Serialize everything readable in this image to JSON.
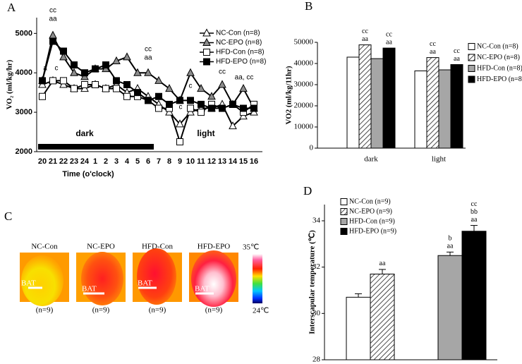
{
  "chart_data": [
    {
      "type": "line",
      "panel": "A",
      "x_label": "Time (o'clock)",
      "y_label": "VO₂ (ml/kg/hr)",
      "categories": [
        "20",
        "21",
        "22",
        "23",
        "24",
        "1",
        "2",
        "3",
        "4",
        "5",
        "6",
        "7",
        "8",
        "9",
        "10",
        "11",
        "12",
        "13",
        "14",
        "15",
        "16"
      ],
      "ylim": [
        2000,
        5400
      ],
      "yticks": [
        2000,
        3000,
        4000,
        5000
      ],
      "period_labels": [
        "dark",
        "light"
      ],
      "series": [
        {
          "name": "NC-Con (n=8)",
          "marker": "triangle",
          "color": "#ffffff",
          "values": [
            3700,
            3800,
            3700,
            3600,
            3600,
            3700,
            3600,
            3700,
            3500,
            3600,
            3400,
            3200,
            3000,
            2700,
            3000,
            3100,
            3100,
            3200,
            2650,
            2900,
            3000
          ]
        },
        {
          "name": "NC-EPO (n=8)",
          "marker": "triangle",
          "color": "#8c8c8c",
          "values": [
            3800,
            4950,
            4400,
            4000,
            3900,
            4100,
            4100,
            4300,
            4400,
            4000,
            4000,
            3800,
            3600,
            3300,
            4000,
            3600,
            3400,
            3700,
            3200,
            3600,
            3100
          ]
        },
        {
          "name": "HFD-Con (n=8)",
          "marker": "square",
          "color": "#ffffff",
          "values": [
            3400,
            3800,
            3800,
            3600,
            3700,
            3700,
            3600,
            3600,
            3400,
            3400,
            3300,
            3100,
            3100,
            2250,
            3100,
            3000,
            3200,
            3100,
            3200,
            3000,
            3200
          ]
        },
        {
          "name": "HFD-EPO (n=8)",
          "marker": "square",
          "color": "#000000",
          "values": [
            3800,
            4800,
            4550,
            4200,
            4000,
            4100,
            4200,
            3800,
            3700,
            3500,
            3300,
            3400,
            3200,
            3300,
            3300,
            3200,
            3100,
            3100,
            3200,
            3100,
            3100
          ]
        }
      ],
      "annotations": [
        {
          "lines": [
            "cc",
            "aa"
          ]
        },
        {
          "lines": [
            "a"
          ]
        },
        {
          "lines": [
            "c"
          ]
        },
        {
          "lines": [
            "cc",
            "aa"
          ]
        },
        {
          "lines": [
            "c"
          ]
        },
        {
          "lines": [
            "c"
          ]
        },
        {
          "lines": [
            "cc"
          ]
        },
        {
          "lines": [
            "aa, cc"
          ]
        }
      ]
    },
    {
      "type": "bar",
      "panel": "B",
      "y_label": "VO2 (ml/kg/11hr)",
      "categories": [
        "dark",
        "light"
      ],
      "ylim": [
        0,
        50000
      ],
      "yticks": [
        0,
        10000,
        20000,
        30000,
        40000,
        50000
      ],
      "series": [
        {
          "name": "NC-Con (n=8)",
          "color": "#ffffff",
          "pattern": "none",
          "values": [
            43000,
            36500
          ]
        },
        {
          "name": "NC-EPO (n=8)",
          "color": "#ffffff",
          "pattern": "hatch",
          "values": [
            48800,
            42800
          ]
        },
        {
          "name": "HFD-Con (n=8)",
          "color": "#a6a6a6",
          "pattern": "none",
          "values": [
            42300,
            37000
          ]
        },
        {
          "name": "HFD-EPO (n=8)",
          "color": "#000000",
          "pattern": "none",
          "values": [
            47300,
            39500
          ]
        }
      ],
      "annotations": [
        {
          "lines": [
            "cc",
            "aa"
          ]
        },
        {
          "lines": [
            "cc",
            "aa"
          ]
        },
        {
          "lines": [
            "cc",
            "aa"
          ]
        },
        {
          "lines": [
            "cc",
            "aa"
          ]
        }
      ]
    },
    {
      "type": "bar",
      "panel": "D",
      "y_label": "Interscapular temperature (℃)",
      "categories": [
        null,
        null
      ],
      "ylim": [
        28,
        34.7
      ],
      "yticks": [
        28,
        30,
        32,
        34
      ],
      "series": [
        {
          "name": "NC-Con (n=9)",
          "color": "#ffffff",
          "pattern": "none",
          "values": [
            30.7,
            null
          ],
          "errors": [
            0.15,
            null
          ]
        },
        {
          "name": "NC-EPO (n=9)",
          "color": "#ffffff",
          "pattern": "hatch",
          "values": [
            31.7,
            null
          ],
          "errors": [
            0.2,
            null
          ]
        },
        {
          "name": "HFD-Con (n=9)",
          "color": "#a6a6a6",
          "pattern": "none",
          "values": [
            null,
            32.5
          ],
          "errors": [
            null,
            0.15
          ]
        },
        {
          "name": "HFD-EPO (n=9)",
          "color": "#000000",
          "pattern": "none",
          "values": [
            null,
            33.55
          ],
          "errors": [
            null,
            0.25
          ]
        }
      ],
      "annotations": [
        {
          "lines": [
            "aa"
          ]
        },
        {
          "lines": [
            "b",
            "aa"
          ]
        },
        {
          "lines": [
            "cc",
            "bb",
            "aa"
          ]
        }
      ]
    }
  ],
  "thermal": {
    "panel": "C",
    "scale_max": "35℃",
    "scale_min": "24℃",
    "images": [
      {
        "title": "NC-Con",
        "label": "BAT",
        "n": "(n=9)"
      },
      {
        "title": "NC-EPO",
        "label": "BAT",
        "n": "(n=9)"
      },
      {
        "title": "HFD-Con",
        "label": "BAT",
        "n": "(n=9)"
      },
      {
        "title": "HFD-EPO",
        "label": "BAT",
        "n": "(n=9)"
      }
    ]
  }
}
